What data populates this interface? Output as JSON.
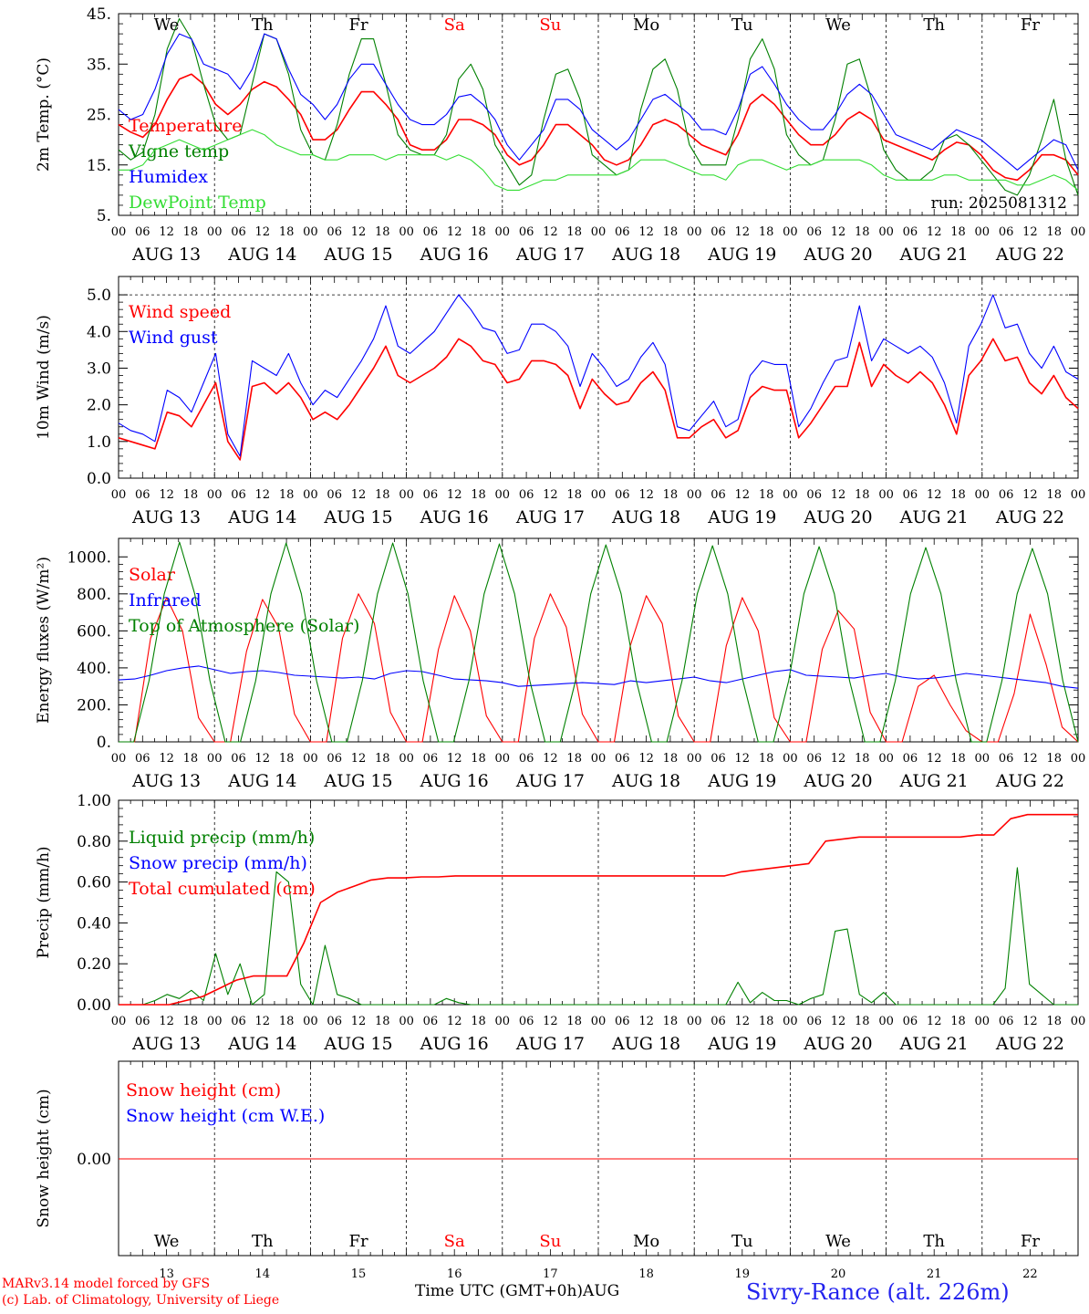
{
  "colors": {
    "red": "#ff0000",
    "green": "#008000",
    "blue": "#0000ff",
    "lightgreen": "#33dd33",
    "axis": "#000000"
  },
  "chart_data": [
    {
      "type": "line",
      "ylabel": "2m Temp. (°C)",
      "ylim": [
        5,
        45
      ],
      "yticks": [
        "5.",
        "15.",
        "25.",
        "35.",
        "45."
      ],
      "run_label": "run: 2025081312",
      "days_header": [
        "We",
        "Th",
        "Fr",
        "Sa",
        "Su",
        "Mo",
        "Tu",
        "We",
        "Th",
        "Fr"
      ],
      "series": [
        {
          "name": "Temperature",
          "color": "#ff0000",
          "values": [
            23,
            21.5,
            20.5,
            23,
            28,
            32,
            33,
            31,
            27,
            25,
            27,
            30,
            31.5,
            30.5,
            28,
            25,
            20,
            20,
            22,
            26,
            29.5,
            29.5,
            27,
            24,
            19,
            18,
            18,
            20,
            24,
            24,
            23,
            21,
            17,
            15,
            16,
            19,
            23,
            23,
            21,
            19,
            16,
            15,
            16,
            19,
            23,
            24,
            23,
            21,
            19,
            18,
            17,
            21,
            27,
            29,
            27,
            24,
            21,
            19,
            19,
            21,
            24,
            25.5,
            24,
            20,
            19,
            18,
            17,
            16,
            18,
            19.5,
            19,
            17,
            14,
            12.5,
            12,
            14,
            17,
            17,
            16,
            13
          ]
        },
        {
          "name": "Vigne temp",
          "color": "#008000",
          "values": [
            18,
            16,
            17.5,
            25,
            38,
            44,
            40,
            31,
            23,
            20,
            21,
            31,
            41,
            40,
            33,
            22,
            17,
            16,
            23,
            33,
            40,
            40,
            31,
            21,
            18,
            17,
            17,
            21,
            32,
            35,
            30,
            19,
            15,
            11,
            13,
            24,
            33,
            34,
            28,
            17,
            15,
            13,
            14,
            26,
            34,
            36,
            30,
            19,
            15,
            15,
            15,
            24,
            36,
            40,
            34,
            21,
            17,
            15,
            16,
            24,
            35,
            36,
            28,
            18,
            14,
            12,
            12,
            14,
            20,
            21,
            19,
            16,
            13,
            10,
            9,
            13,
            20,
            28,
            16,
            9
          ]
        },
        {
          "name": "Humidex",
          "color": "#0000ff",
          "values": [
            26,
            24,
            25,
            30,
            37,
            41,
            40,
            35,
            34,
            33,
            30,
            34,
            41,
            40,
            34,
            29,
            27,
            24,
            27,
            32,
            35,
            35,
            31,
            27,
            24,
            23,
            23,
            25,
            28.5,
            29,
            27,
            24,
            19,
            16,
            19,
            22,
            28,
            28,
            26,
            22,
            20,
            18,
            20,
            24,
            28,
            29,
            27,
            25,
            22,
            22,
            21,
            26,
            33,
            34.5,
            31,
            27,
            24,
            22,
            22,
            25,
            29,
            31,
            29,
            25,
            21,
            20,
            19,
            18,
            20,
            22,
            21,
            20,
            18,
            16,
            14,
            16,
            18,
            20,
            19,
            14
          ]
        },
        {
          "name": "DewPoint Temp",
          "color": "#33dd33",
          "values": [
            14,
            14,
            15,
            18,
            19,
            20,
            19,
            18,
            19,
            20,
            21,
            22,
            21,
            19,
            18,
            17,
            17,
            16,
            16,
            17,
            17,
            17,
            16,
            17,
            17,
            17,
            17,
            16,
            17,
            16,
            14,
            11,
            10,
            10,
            11,
            12,
            12,
            13,
            13,
            13,
            13,
            13,
            14,
            16,
            16,
            16,
            15,
            14,
            13,
            13,
            12,
            15,
            16,
            16,
            15,
            14,
            15,
            15,
            16,
            16,
            16,
            16,
            15,
            13,
            12,
            12,
            12,
            12,
            13,
            13,
            12,
            12,
            12,
            12,
            11,
            11,
            12,
            13,
            12,
            10
          ]
        }
      ]
    },
    {
      "type": "line",
      "ylabel": "10m Wind (m/s)",
      "ylim": [
        0,
        5.5
      ],
      "yticks": [
        "0.0",
        "1.0",
        "2.0",
        "3.0",
        "4.0",
        "5.0"
      ],
      "dashed_level": 5.0,
      "series": [
        {
          "name": "Wind speed",
          "color": "#ff0000",
          "values": [
            1.1,
            1.0,
            0.9,
            0.8,
            1.8,
            1.7,
            1.4,
            2.0,
            2.6,
            1.0,
            0.5,
            2.5,
            2.6,
            2.3,
            2.6,
            2.2,
            1.6,
            1.8,
            1.6,
            2.0,
            2.5,
            3.0,
            3.6,
            2.8,
            2.6,
            2.8,
            3.0,
            3.3,
            3.8,
            3.6,
            3.2,
            3.1,
            2.6,
            2.7,
            3.2,
            3.2,
            3.1,
            2.8,
            1.9,
            2.7,
            2.3,
            2.0,
            2.1,
            2.6,
            2.9,
            2.4,
            1.1,
            1.1,
            1.4,
            1.6,
            1.1,
            1.3,
            2.2,
            2.5,
            2.4,
            2.4,
            1.1,
            1.5,
            2.0,
            2.5,
            2.5,
            3.7,
            2.5,
            3.1,
            2.8,
            2.6,
            2.9,
            2.6,
            2.0,
            1.2,
            2.8,
            3.2,
            3.8,
            3.2,
            3.3,
            2.6,
            2.3,
            2.8,
            2.2,
            1.9
          ]
        },
        {
          "name": "Wind gust",
          "color": "#0000ff",
          "values": [
            1.5,
            1.3,
            1.2,
            1.0,
            2.4,
            2.2,
            1.8,
            2.6,
            3.4,
            1.2,
            0.6,
            3.2,
            3.0,
            2.8,
            3.4,
            2.6,
            2.0,
            2.4,
            2.2,
            2.7,
            3.2,
            3.8,
            4.7,
            3.6,
            3.4,
            3.7,
            4.0,
            4.5,
            5.0,
            4.6,
            4.1,
            4.0,
            3.4,
            3.5,
            4.2,
            4.2,
            4.0,
            3.6,
            2.5,
            3.4,
            3.0,
            2.5,
            2.7,
            3.3,
            3.7,
            3.1,
            1.4,
            1.3,
            1.7,
            2.1,
            1.4,
            1.6,
            2.8,
            3.2,
            3.1,
            3.1,
            1.4,
            1.9,
            2.6,
            3.2,
            3.3,
            4.7,
            3.2,
            3.8,
            3.6,
            3.4,
            3.6,
            3.3,
            2.6,
            1.5,
            3.6,
            4.2,
            5.0,
            4.1,
            4.2,
            3.4,
            3.0,
            3.6,
            2.9,
            2.7
          ]
        }
      ]
    },
    {
      "type": "line",
      "ylabel": "Energy fluxes (W/m²)",
      "ylim": [
        0,
        1100
      ],
      "yticks": [
        "0.",
        "200.",
        "400.",
        "600.",
        "800.",
        "1000."
      ],
      "series": [
        {
          "name": "Solar",
          "color": "#ff0000",
          "values": [
            0,
            0,
            560,
            780,
            600,
            130,
            0,
            0,
            490,
            770,
            620,
            150,
            0,
            0,
            560,
            800,
            640,
            160,
            0,
            0,
            500,
            790,
            600,
            140,
            0,
            0,
            560,
            800,
            620,
            150,
            0,
            0,
            520,
            790,
            640,
            140,
            0,
            0,
            520,
            780,
            600,
            130,
            0,
            0,
            500,
            710,
            610,
            160,
            0,
            0,
            300,
            360,
            200,
            60,
            0,
            0,
            260,
            690,
            420,
            80,
            0
          ]
        },
        {
          "name": "Infrared",
          "color": "#0000ff",
          "values": [
            335,
            340,
            360,
            385,
            400,
            410,
            390,
            370,
            380,
            385,
            375,
            360,
            355,
            350,
            345,
            350,
            340,
            370,
            385,
            380,
            360,
            340,
            335,
            330,
            320,
            300,
            305,
            310,
            315,
            320,
            315,
            310,
            330,
            320,
            330,
            340,
            350,
            330,
            320,
            340,
            360,
            380,
            390,
            360,
            355,
            350,
            345,
            360,
            370,
            350,
            340,
            345,
            355,
            370,
            360,
            350,
            340,
            330,
            320,
            300,
            290
          ]
        },
        {
          "name": "Top of Atmosphere (Solar)",
          "color": "#008000",
          "values": [
            0,
            0,
            330,
            800,
            1080,
            800,
            330,
            0,
            0,
            330,
            800,
            1075,
            800,
            330,
            0,
            0,
            330,
            800,
            1075,
            800,
            330,
            0,
            0,
            330,
            800,
            1070,
            800,
            330,
            0,
            0,
            330,
            800,
            1065,
            800,
            330,
            0,
            0,
            330,
            800,
            1060,
            800,
            330,
            0,
            0,
            330,
            800,
            1055,
            800,
            330,
            0,
            0,
            330,
            800,
            1050,
            800,
            330,
            0,
            0,
            330,
            800,
            1045,
            800,
            330,
            0
          ]
        }
      ]
    },
    {
      "type": "line",
      "ylabel": "Precip (mm/h)",
      "ylim": [
        0,
        1.0
      ],
      "yticks": [
        "0.00",
        "0.20",
        "0.40",
        "0.60",
        "0.80",
        "1.00"
      ],
      "series": [
        {
          "name": "Liquid precip (mm/h)",
          "color": "#008000",
          "values": [
            0,
            0,
            0,
            0.02,
            0.05,
            0.03,
            0.07,
            0.02,
            0.25,
            0.05,
            0.2,
            0,
            0.05,
            0.65,
            0.6,
            0.1,
            0,
            0.29,
            0.05,
            0.03,
            0,
            0,
            0,
            0,
            0,
            0,
            0,
            0.03,
            0.01,
            0,
            0,
            0,
            0,
            0,
            0,
            0,
            0,
            0,
            0,
            0,
            0,
            0,
            0,
            0,
            0,
            0,
            0,
            0,
            0,
            0,
            0,
            0.11,
            0.01,
            0.06,
            0.02,
            0.02,
            0,
            0.03,
            0.05,
            0.36,
            0.37,
            0.05,
            0.01,
            0.06,
            0,
            0,
            0,
            0,
            0,
            0,
            0,
            0,
            0,
            0.08,
            0.67,
            0.1,
            0.05,
            0,
            0,
            0
          ]
        },
        {
          "name": "Snow precip (mm/h)",
          "color": "#0000ff",
          "values": []
        },
        {
          "name": "Total cumulated (cm)",
          "color": "#ff0000",
          "values": [
            0,
            0,
            0,
            0,
            0.02,
            0.04,
            0.08,
            0.12,
            0.14,
            0.14,
            0.14,
            0.3,
            0.5,
            0.55,
            0.58,
            0.61,
            0.62,
            0.62,
            0.625,
            0.625,
            0.63,
            0.63,
            0.63,
            0.63,
            0.63,
            0.63,
            0.63,
            0.63,
            0.63,
            0.63,
            0.63,
            0.63,
            0.63,
            0.63,
            0.63,
            0.63,
            0.63,
            0.65,
            0.66,
            0.67,
            0.68,
            0.69,
            0.8,
            0.81,
            0.82,
            0.82,
            0.82,
            0.82,
            0.82,
            0.82,
            0.82,
            0.83,
            0.83,
            0.91,
            0.93,
            0.93,
            0.93,
            0.93
          ]
        }
      ]
    },
    {
      "type": "line",
      "ylabel": "Snow height (cm)",
      "yticks": [
        "0.00"
      ],
      "series": [
        {
          "name": "Snow height (cm)",
          "color": "#ff0000",
          "values": [
            0,
            0
          ]
        },
        {
          "name": "Snow height (cm W.E.)",
          "color": "#0000ff",
          "values": []
        }
      ],
      "days_footer": [
        "We",
        "Th",
        "Fr",
        "Sa",
        "Su",
        "Mo",
        "Tu",
        "We",
        "Th",
        "Fr"
      ],
      "day_numbers": [
        "13",
        "14",
        "15",
        "16",
        "17",
        "18",
        "19",
        "20",
        "21",
        "22"
      ]
    }
  ],
  "x_axis": {
    "hour_labels": [
      "00",
      "06",
      "12",
      "18"
    ],
    "end_label": "00",
    "date_labels": [
      "AUG 13",
      "AUG 14",
      "AUG 15",
      "AUG 16",
      "AUG 17",
      "AUG 18",
      "AUG 19",
      "AUG 20",
      "AUG 21",
      "AUG 22"
    ],
    "weekend_indices": [
      3,
      4
    ]
  },
  "footer": {
    "model_line": "MARv3.14 model forced by GFS",
    "copyright_line": "(c) Lab. of Climatology, University of Liege",
    "time_label": "Time UTC (GMT+0h)AUG",
    "location": "Sivry-Rance (alt. 226m)"
  }
}
